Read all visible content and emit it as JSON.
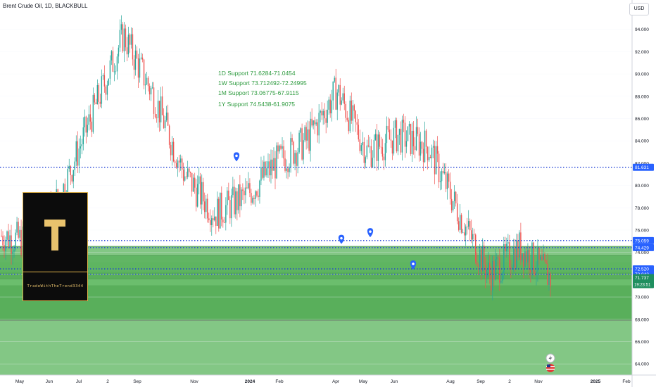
{
  "header": {
    "title": "Brent Crude Oil, 1D, BLACKBULL",
    "currency": "USD"
  },
  "annotations": {
    "support_lines": [
      "1D Support 71.6284-71.0454",
      "1W Support 73.712492-72.24995",
      "1M Support 73.06775-67.9115",
      "1Y Support 74.5438-61.9075"
    ]
  },
  "watermark": {
    "letter": "T",
    "text": "TradeWithTheTrend3344"
  },
  "colors": {
    "up": "#26a69a",
    "down": "#ef5350",
    "level": "#1e3fd6",
    "zone": "#4caf50",
    "support_text": "#2e9b3f",
    "badge": "#2962ff"
  },
  "chart_data": {
    "type": "candlestick",
    "title": "Brent Crude Oil, 1D, BLACKBULL",
    "ylim": [
      63,
      96
    ],
    "y_ticks": [
      "64.000",
      "66.000",
      "68.000",
      "70.000",
      "72.000",
      "74.000",
      "76.000",
      "78.000",
      "80.000",
      "82.000",
      "84.000",
      "86.000",
      "88.000",
      "90.000",
      "92.000",
      "94.000"
    ],
    "x_ticks": [
      "May",
      "Jun",
      "Jul",
      "2",
      "Sep",
      "Nov",
      "2024",
      "Feb",
      "Apr",
      "May",
      "Jun",
      "Aug",
      "Sep",
      "2",
      "Nov",
      "2025",
      "Feb"
    ],
    "price_series": {
      "months": [
        "May 2023",
        "Jun 2023",
        "Jul 2023",
        "Aug 2023",
        "Sep 2023",
        "Oct 2023",
        "Nov 2023",
        "Dec 2023",
        "Jan 2024",
        "Feb 2024",
        "Mar 2024",
        "Apr 2024",
        "May 2024",
        "Jun 2024",
        "Jul 2024",
        "Aug 2024",
        "Sep 2024",
        "Oct 2024",
        "Nov 2024"
      ],
      "approx_close": [
        75.5,
        74.9,
        79.5,
        86.5,
        93.5,
        88.0,
        81.0,
        77.5,
        79.0,
        82.0,
        84.0,
        88.5,
        83.0,
        84.5,
        83.5,
        77.5,
        72.0,
        74.5,
        71.7
      ]
    },
    "price_labels": [
      {
        "value": "81.631",
        "kind": "level"
      },
      {
        "value": "75.059",
        "kind": "level"
      },
      {
        "value": "74.429",
        "kind": "level"
      },
      {
        "value": "72.520",
        "kind": "level"
      },
      {
        "value": "72.042",
        "kind": "level"
      },
      {
        "value": "71.737",
        "kind": "current"
      }
    ],
    "countdown": "19:23:51",
    "support_zones": [
      {
        "label": "1D Support",
        "low": 71.0454,
        "high": 71.6284
      },
      {
        "label": "1W Support",
        "low": 72.24995,
        "high": 73.712492
      },
      {
        "label": "1M Support",
        "low": 67.9115,
        "high": 73.06775
      },
      {
        "label": "1Y Support",
        "low": 61.9075,
        "high": 74.5438
      }
    ]
  }
}
